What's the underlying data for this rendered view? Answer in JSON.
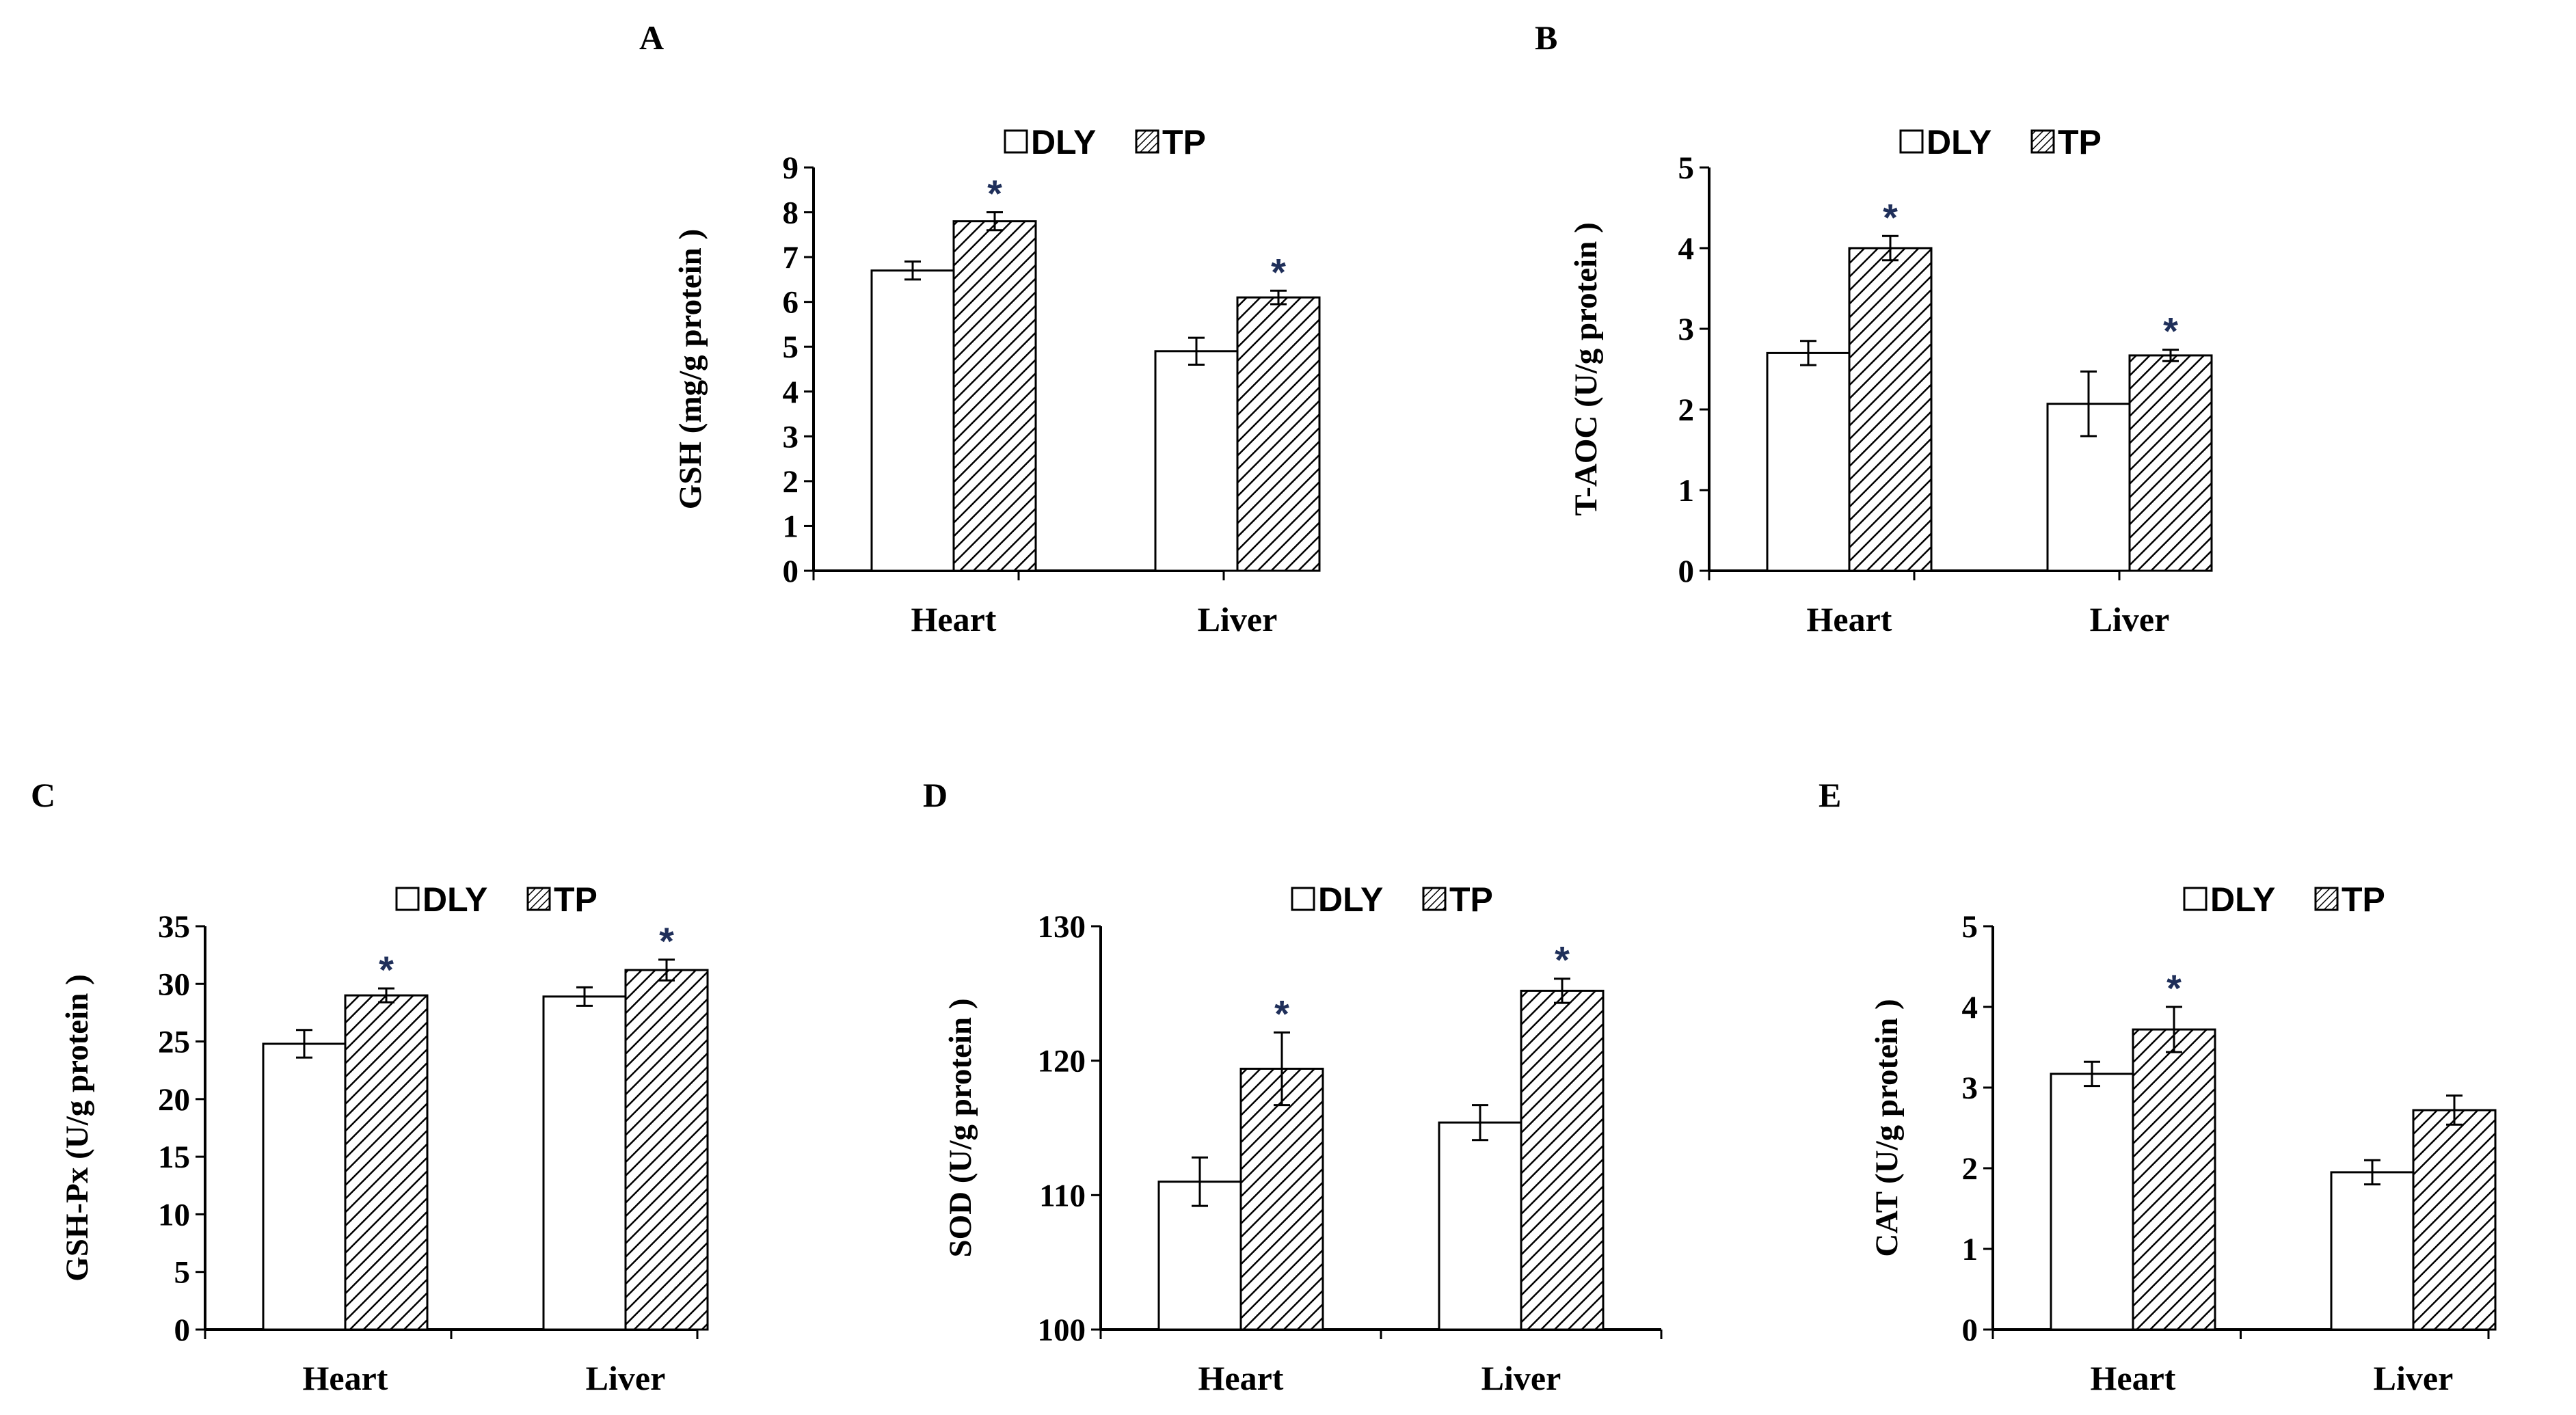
{
  "colors": {
    "dly_fill": "#ffffff",
    "tp_hatch": "#000000",
    "axis": "#000000",
    "asterisk": "#1f2f5a"
  },
  "legend": {
    "dly": "DLY",
    "tp": "TP"
  },
  "asterisk": "*",
  "chart_data": [
    {
      "panel": "A",
      "type": "bar",
      "categories": [
        "Heart",
        "Liver"
      ],
      "ylabel": "GSH (mg/g protein )",
      "ylim": [
        0,
        9
      ],
      "ticks": [
        0,
        1,
        2,
        3,
        4,
        5,
        6,
        7,
        8,
        9
      ],
      "series": [
        {
          "name": "DLY",
          "values": [
            6.7,
            4.9
          ],
          "errors": [
            0.2,
            0.3
          ],
          "significant": [
            false,
            false
          ]
        },
        {
          "name": "TP",
          "values": [
            7.8,
            6.1
          ],
          "errors": [
            0.2,
            0.15
          ],
          "significant": [
            true,
            true
          ]
        }
      ]
    },
    {
      "panel": "B",
      "type": "bar",
      "categories": [
        "Heart",
        "Liver"
      ],
      "ylabel": "T-AOC (U/g protein )",
      "ylim": [
        0,
        5
      ],
      "ticks": [
        0,
        1,
        2,
        3,
        4,
        5
      ],
      "series": [
        {
          "name": "DLY",
          "values": [
            2.7,
            2.07
          ],
          "errors": [
            0.15,
            0.4
          ],
          "significant": [
            false,
            false
          ]
        },
        {
          "name": "TP",
          "values": [
            4.0,
            2.67
          ],
          "errors": [
            0.15,
            0.07
          ],
          "significant": [
            true,
            true
          ]
        }
      ]
    },
    {
      "panel": "C",
      "type": "bar",
      "categories": [
        "Heart",
        "Liver"
      ],
      "ylabel": "GSH-Px (U/g protein )",
      "ylim": [
        0,
        35
      ],
      "ticks": [
        0,
        5,
        10,
        15,
        20,
        25,
        30,
        35
      ],
      "series": [
        {
          "name": "DLY",
          "values": [
            24.8,
            28.9
          ],
          "errors": [
            1.2,
            0.8
          ],
          "significant": [
            false,
            false
          ]
        },
        {
          "name": "TP",
          "values": [
            29.0,
            31.2
          ],
          "errors": [
            0.6,
            0.9
          ],
          "significant": [
            true,
            true
          ]
        }
      ]
    },
    {
      "panel": "D",
      "type": "bar",
      "categories": [
        "Heart",
        "Liver"
      ],
      "ylabel": "SOD (U/g protein )",
      "ylim": [
        100,
        130
      ],
      "ticks": [
        100,
        110,
        120,
        130
      ],
      "series": [
        {
          "name": "DLY",
          "values": [
            111.0,
            115.4
          ],
          "errors": [
            1.8,
            1.3
          ],
          "significant": [
            false,
            false
          ]
        },
        {
          "name": "TP",
          "values": [
            119.4,
            125.2
          ],
          "errors": [
            2.7,
            0.9
          ],
          "significant": [
            true,
            true
          ]
        }
      ]
    },
    {
      "panel": "E",
      "type": "bar",
      "categories": [
        "Heart",
        "Liver"
      ],
      "ylabel": "CAT  (U/g protein )",
      "ylim": [
        0,
        5
      ],
      "ticks": [
        0,
        1,
        2,
        3,
        4,
        5
      ],
      "series": [
        {
          "name": "DLY",
          "values": [
            3.17,
            1.95
          ],
          "errors": [
            0.15,
            0.15
          ],
          "significant": [
            false,
            false
          ]
        },
        {
          "name": "TP",
          "values": [
            3.72,
            2.72
          ],
          "errors": [
            0.28,
            0.18
          ],
          "significant": [
            true,
            false
          ]
        }
      ]
    }
  ]
}
